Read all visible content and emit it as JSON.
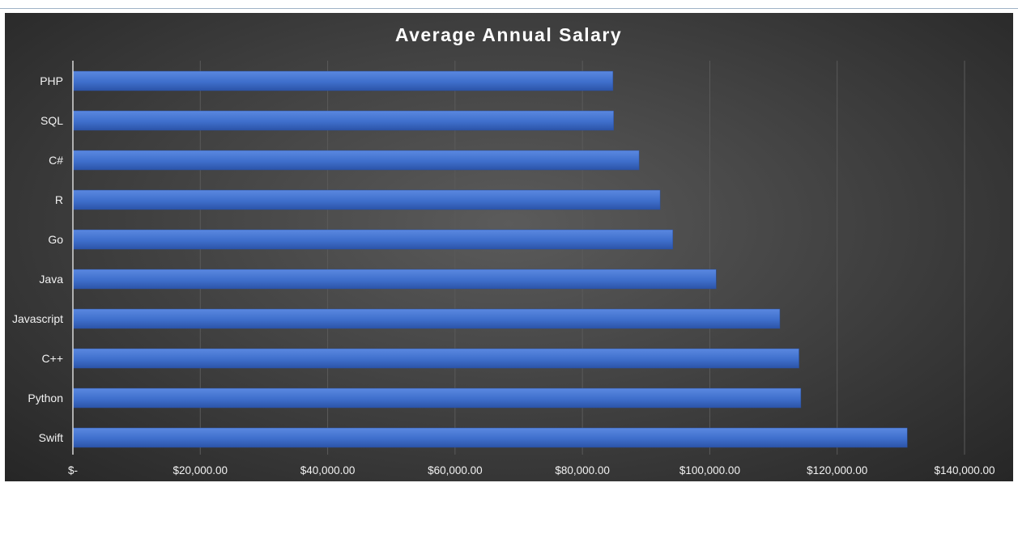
{
  "chart_data": {
    "type": "bar",
    "orientation": "horizontal",
    "title": "Average Annual Salary",
    "categories": [
      "PHP",
      "SQL",
      "C#",
      "R",
      "Go",
      "Java",
      "Javascript",
      "C++",
      "Python",
      "Swift"
    ],
    "values": [
      84800,
      84900,
      88900,
      92200,
      94200,
      101000,
      111000,
      114000,
      114300,
      131000
    ],
    "xlim": [
      0,
      140000
    ],
    "xticks": [
      0,
      20000,
      40000,
      60000,
      80000,
      100000,
      120000,
      140000
    ],
    "xtick_labels": [
      "$-",
      "$20,000.00",
      "$40,000.00",
      "$60,000.00",
      "$80,000.00",
      "$100,000.00",
      "$120,000.00",
      "$140,000.00"
    ],
    "xlabel": "",
    "ylabel": "",
    "grid": "vertical",
    "legend": "none",
    "colors": {
      "bar": "#3f6fcc",
      "bar_light": "#5a88e0",
      "bar_dark": "#2c54a8",
      "background": "#404040",
      "grid": "#5a5a5a",
      "text": "#f2f2f2"
    }
  }
}
